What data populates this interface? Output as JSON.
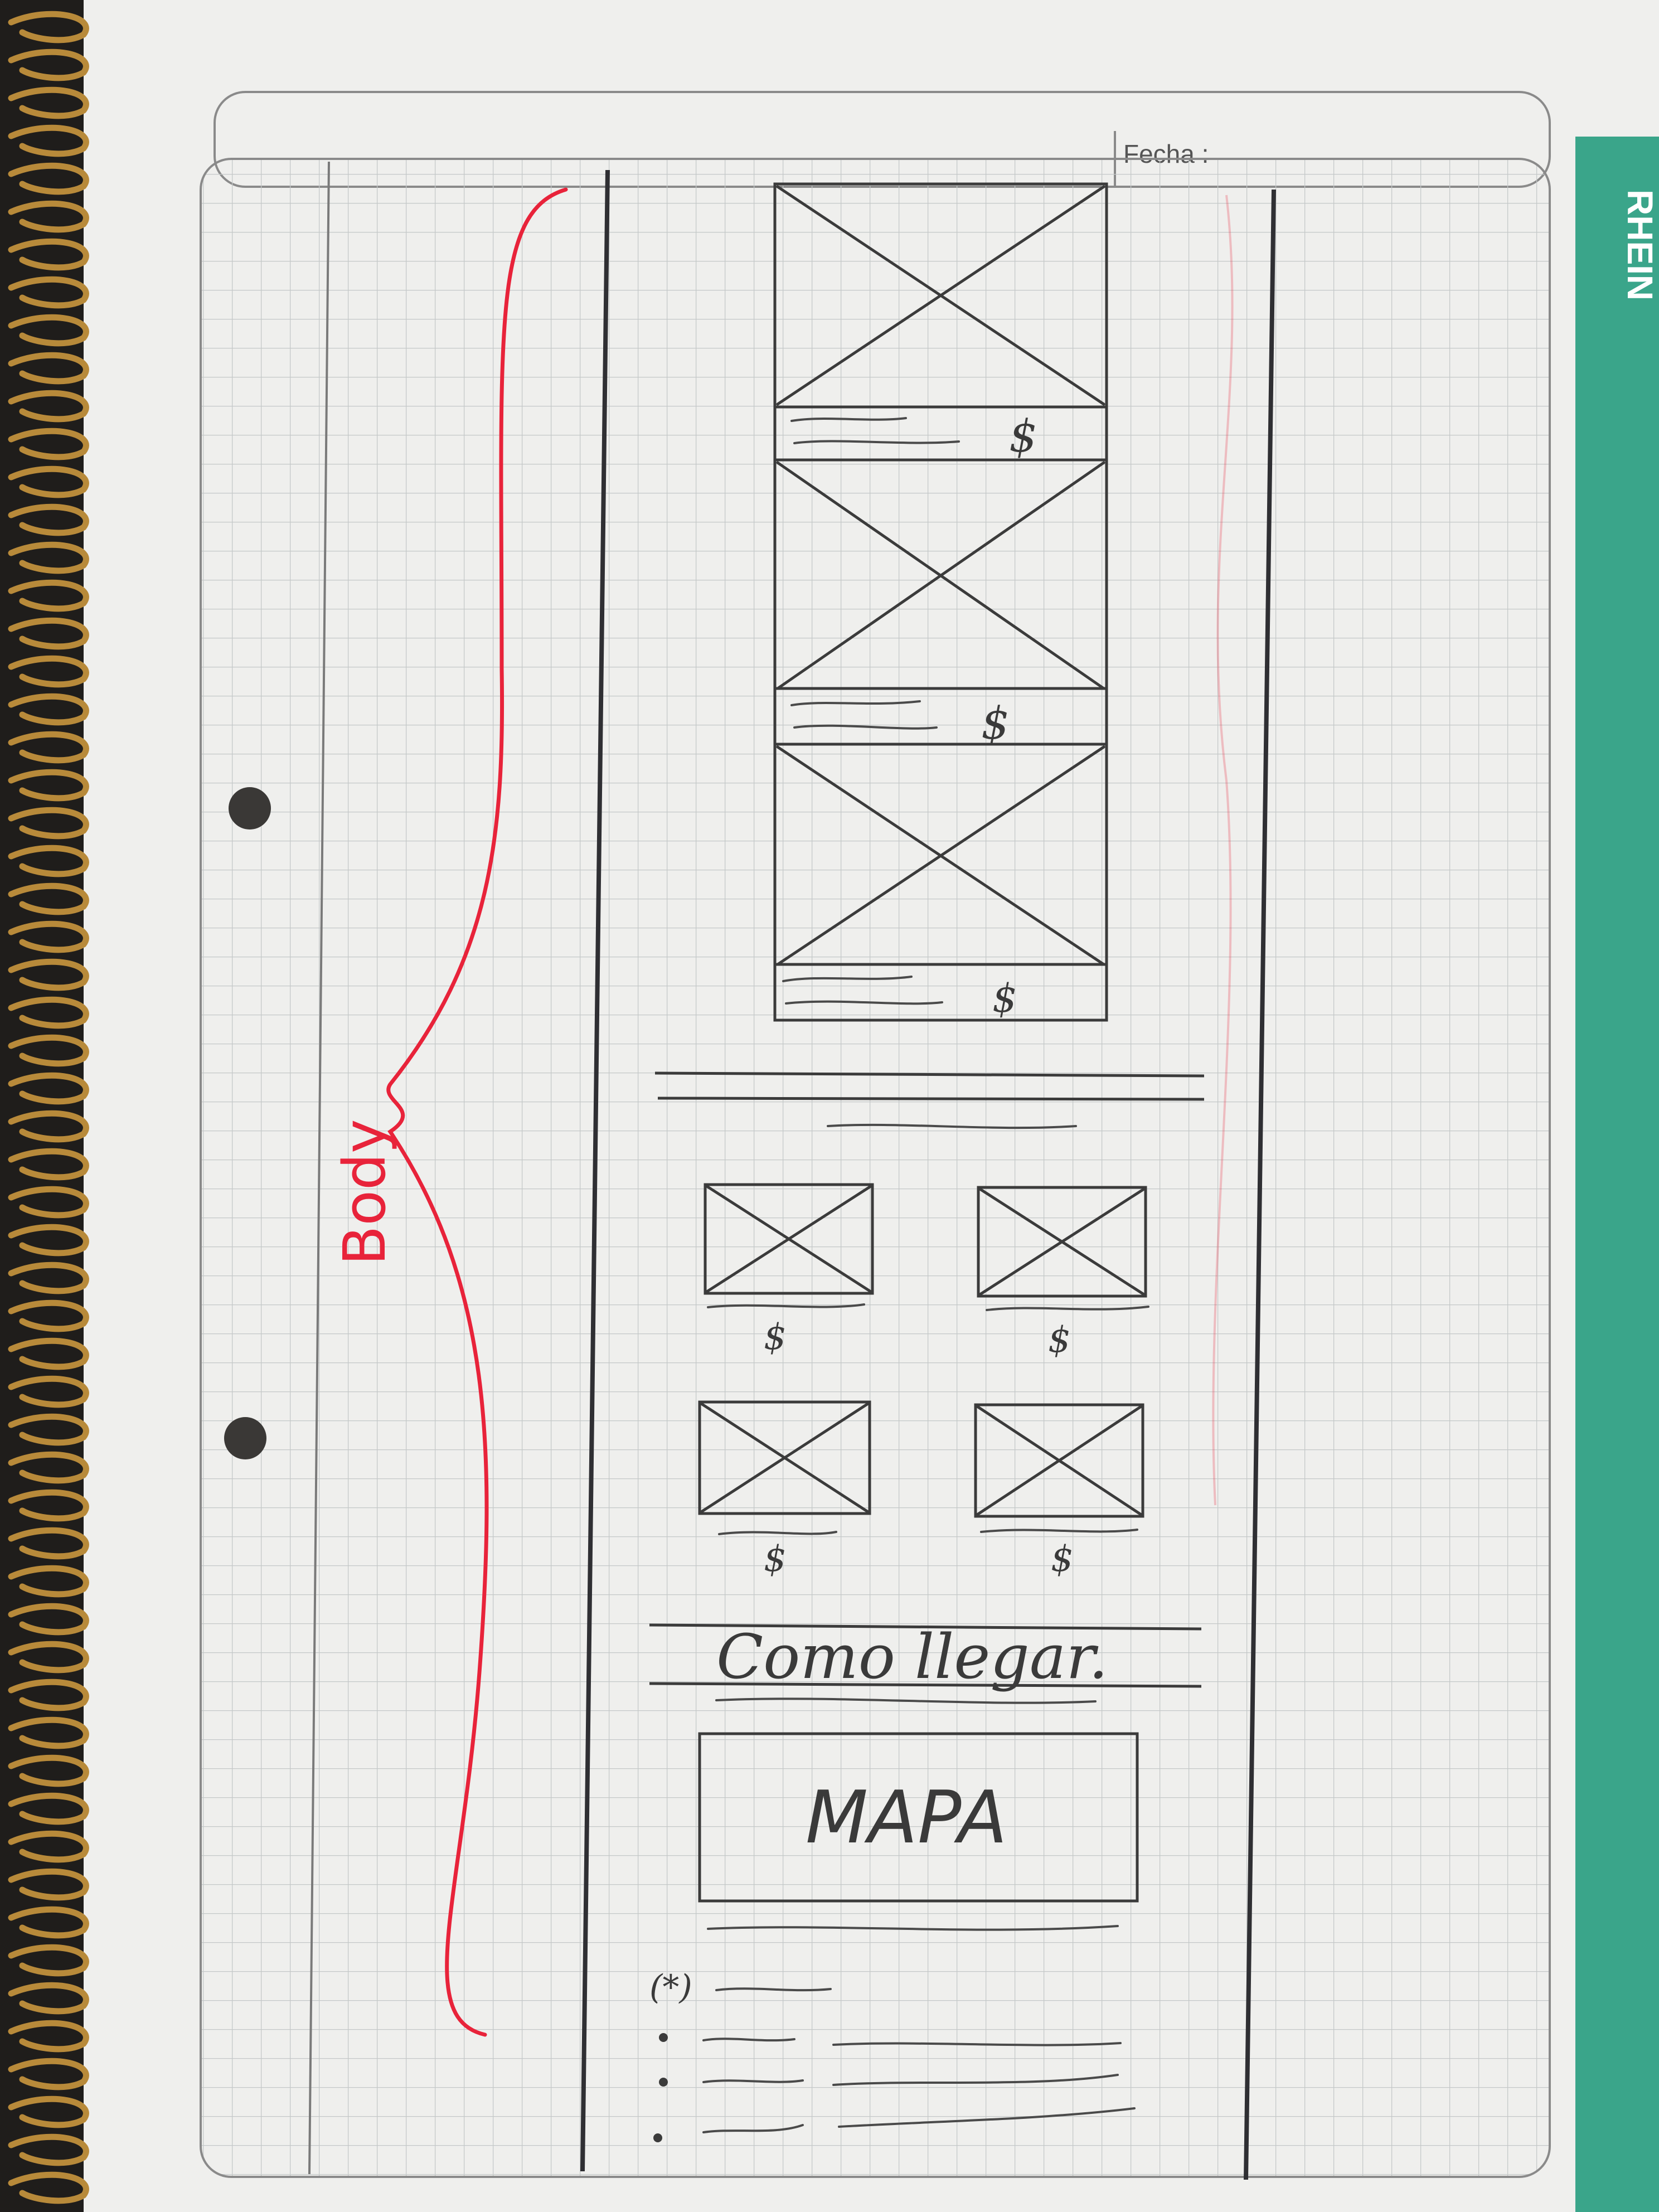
{
  "header": {
    "date_label": "Fecha :"
  },
  "brand": {
    "name": "RHEIN"
  },
  "annotation": {
    "body_label": "Body"
  },
  "sketch": {
    "product_rows": [
      {
        "price": "$"
      },
      {
        "price": "$"
      },
      {
        "price": "$"
      }
    ],
    "product_grid": [
      {
        "price": "$"
      },
      {
        "price": "$"
      },
      {
        "price": "$"
      },
      {
        "price": "$"
      }
    ],
    "directions_title": "Como llegar.",
    "map_label": "MAPA",
    "list_marker": "(*)"
  },
  "colors": {
    "paper": "#efefed",
    "grid": "#c4c8c8",
    "ink": "#3b3b3b",
    "annotation_red": "#e8233a",
    "brand_green": "#3aa58a",
    "spiral": "#b88a3a"
  }
}
